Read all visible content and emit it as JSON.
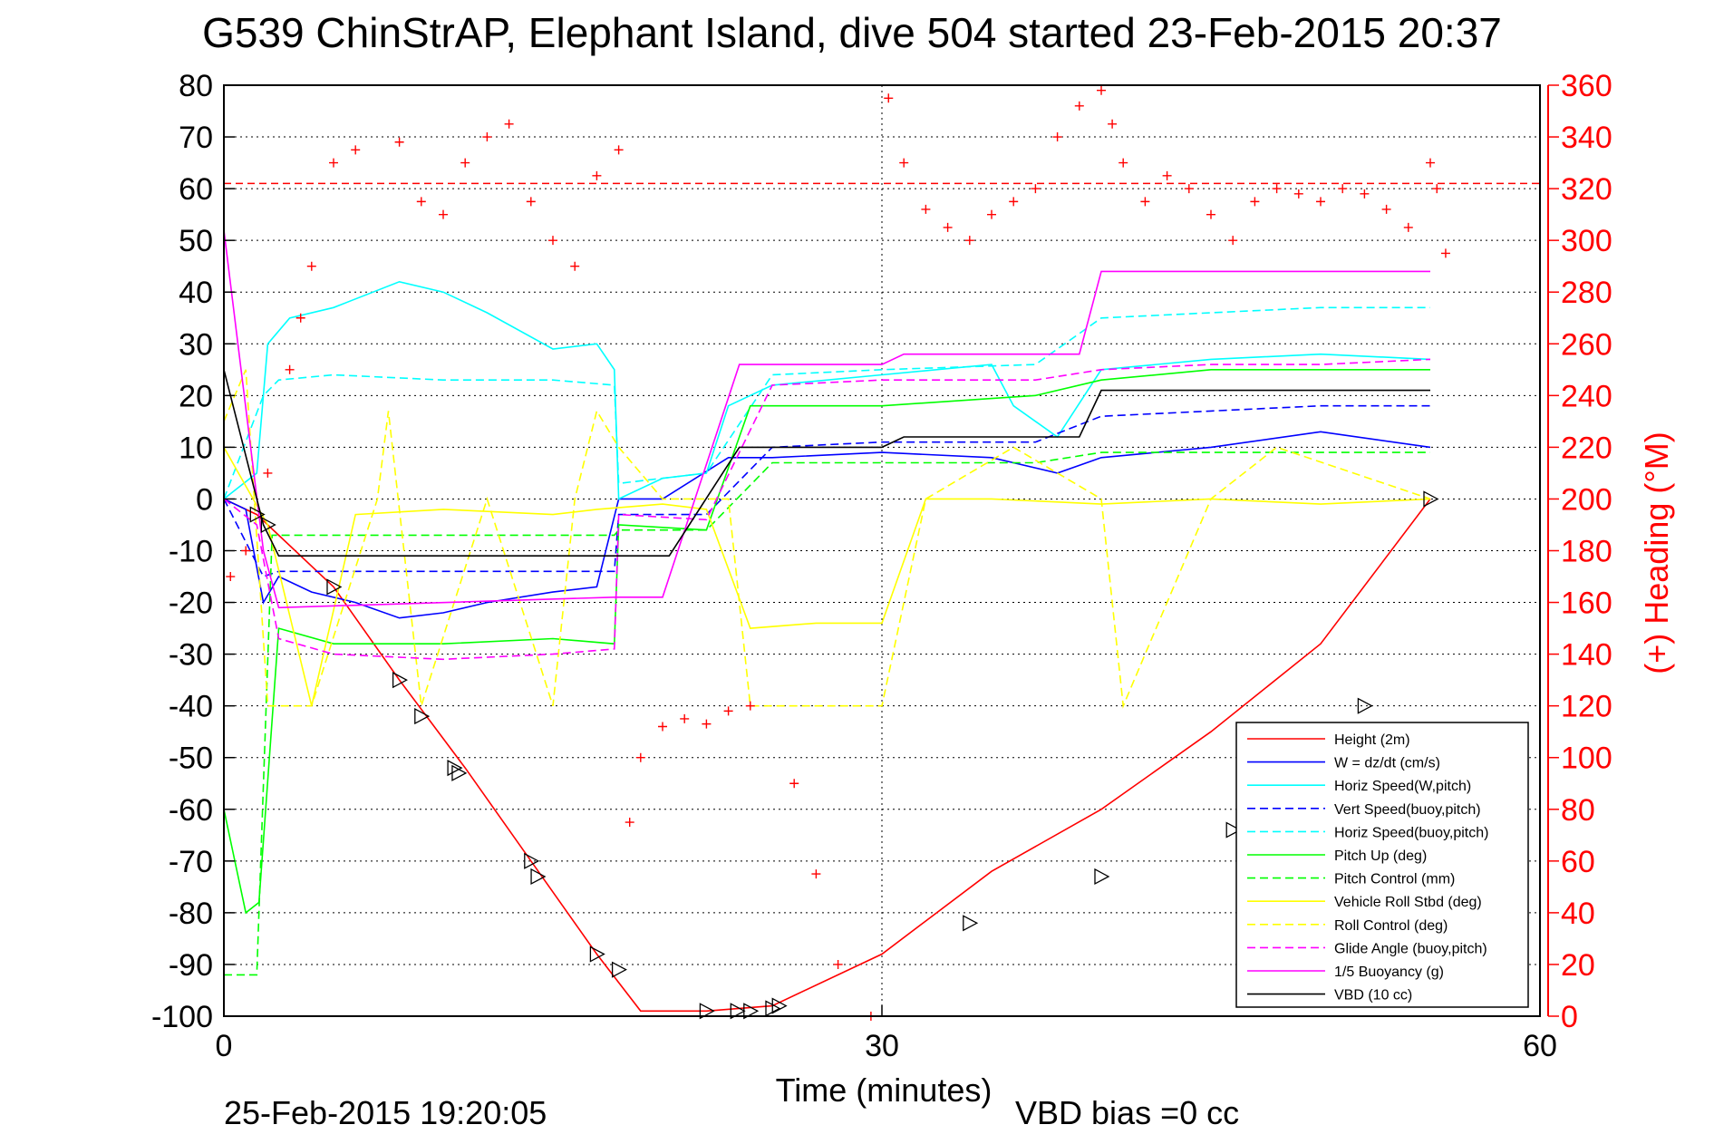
{
  "chart_data": {
    "type": "line",
    "title": "G539 ChinStrAP, Elephant Island, dive 504 started 23-Feb-2015 20:37",
    "xlabel": "Time (minutes)",
    "ylabel": "",
    "y2label": "(+) Heading (°M)",
    "xlim": [
      0,
      60
    ],
    "ylim": [
      -100,
      80
    ],
    "y2lim": [
      0,
      360
    ],
    "xticks": [
      "0",
      "30",
      "60"
    ],
    "yticks": [
      "80",
      "70",
      "60",
      "50",
      "40",
      "30",
      "20",
      "10",
      "0",
      "-10",
      "-20",
      "-30",
      "-40",
      "-50",
      "-60",
      "-70",
      "-80",
      "-90",
      "-100"
    ],
    "y2ticks": [
      "360",
      "340",
      "320",
      "300",
      "280",
      "260",
      "240",
      "220",
      "200",
      "180",
      "160",
      "140",
      "120",
      "100",
      "80",
      "60",
      "40",
      "20",
      "0"
    ],
    "grid": true,
    "legend_position": "bottom-right",
    "footer_date": "25-Feb-2015 19:20:05",
    "footer_note": "VBD bias =0 cc",
    "colors": {
      "red": "#ff0000",
      "blue": "#0000ff",
      "cyan": "#00ffff",
      "green": "#00ff00",
      "yellow": "#ffff00",
      "magenta": "#ff00ff",
      "black": "#000000"
    },
    "series": [
      {
        "name": "Height (2m)",
        "color": "#ff0000",
        "dash": "solid",
        "x": [
          0,
          1.5,
          2,
          5,
          8,
          11,
          14,
          17,
          19,
          22,
          25,
          30,
          35,
          40,
          45,
          50,
          55
        ],
        "y": [
          0,
          -3,
          -5,
          -17,
          -35,
          -52,
          -70,
          -88,
          -99,
          -99,
          -98,
          -88,
          -72,
          -60,
          -45,
          -28,
          0
        ]
      },
      {
        "name": "W = dz/dt (cm/s)",
        "color": "#0000ff",
        "dash": "solid",
        "x": [
          0,
          1,
          1.8,
          2.5,
          4,
          6,
          8,
          10,
          12,
          15,
          17,
          18,
          20,
          23,
          25,
          30,
          35,
          38,
          40,
          45,
          50,
          55
        ],
        "y": [
          0,
          -2,
          -20,
          -15,
          -18,
          -20,
          -23,
          -22,
          -20,
          -18,
          -17,
          0,
          0,
          8,
          8,
          9,
          8,
          5,
          8,
          10,
          13,
          10
        ]
      },
      {
        "name": "Horiz Speed(W,pitch)",
        "color": "#00ffff",
        "dash": "solid",
        "x": [
          0,
          1.5,
          2,
          3,
          5,
          8,
          10,
          12,
          15,
          17,
          17.8,
          18,
          20,
          22,
          23,
          25,
          30,
          35,
          36,
          38,
          40,
          45,
          50,
          55
        ],
        "y": [
          0,
          5,
          30,
          35,
          37,
          42,
          40,
          36,
          29,
          30,
          25,
          0,
          4,
          5,
          18,
          22,
          24,
          26,
          18,
          12,
          25,
          27,
          28,
          27
        ]
      },
      {
        "name": "Vert Speed(buoy,pitch)",
        "color": "#0000ff",
        "dash": "dashed",
        "x": [
          0,
          1.8,
          2.5,
          17.8,
          18,
          22,
          25,
          30,
          37,
          40,
          45,
          50,
          55
        ],
        "y": [
          0,
          -15,
          -14,
          -14,
          -3,
          -3,
          10,
          11,
          11,
          16,
          17,
          18,
          18
        ]
      },
      {
        "name": "Horiz Speed(buoy,pitch)",
        "color": "#00ffff",
        "dash": "dashed",
        "x": [
          0,
          1.8,
          2.5,
          5,
          10,
          15,
          17.8,
          18,
          22,
          25,
          30,
          37,
          40,
          45,
          50,
          55
        ],
        "y": [
          0,
          20,
          23,
          24,
          23,
          23,
          22,
          3,
          5,
          24,
          25,
          26,
          35,
          36,
          37,
          37
        ]
      },
      {
        "name": "Pitch Up (deg)",
        "color": "#00ff00",
        "dash": "solid",
        "x": [
          0,
          1,
          1.6,
          2.5,
          5,
          10,
          15,
          17.8,
          18,
          22,
          24,
          30,
          37,
          40,
          45,
          50,
          55
        ],
        "y": [
          -60,
          -80,
          -78,
          -25,
          -28,
          -28,
          -27,
          -28,
          -5,
          -6,
          18,
          18,
          20,
          23,
          25,
          25,
          25
        ]
      },
      {
        "name": "Pitch Control (mm)",
        "color": "#00ff00",
        "dash": "dashed",
        "x": [
          0,
          1.5,
          2.2,
          17.8,
          18,
          22,
          25,
          30,
          37,
          40,
          45,
          50,
          55
        ],
        "y": [
          -92,
          -92,
          -7,
          -7,
          -6,
          -6,
          7,
          7,
          7,
          9,
          9,
          9,
          9
        ]
      },
      {
        "name": "Vehicle Roll Stbd (deg)",
        "color": "#ffff00",
        "dash": "solid",
        "x": [
          0,
          2,
          4,
          6,
          10,
          15,
          17,
          20,
          22,
          24,
          27,
          30,
          32,
          35,
          40,
          45,
          50,
          55
        ],
        "y": [
          10,
          -5,
          -40,
          -3,
          -2,
          -3,
          -2,
          -1,
          -2,
          -25,
          -24,
          -24,
          0,
          0,
          -1,
          0,
          -1,
          0
        ]
      },
      {
        "name": "Roll Control (deg)",
        "color": "#ffff00",
        "dash": "dashed",
        "x": [
          0,
          1,
          2,
          4,
          7,
          7.5,
          9,
          12,
          15,
          16,
          17,
          18,
          20,
          23,
          24,
          30,
          32,
          36,
          40,
          41,
          45,
          48,
          55
        ],
        "y": [
          15,
          25,
          -40,
          -40,
          0,
          17,
          -40,
          0,
          -40,
          0,
          17,
          10,
          0,
          0,
          -40,
          -40,
          0,
          10,
          0,
          -40,
          0,
          10,
          0
        ]
      },
      {
        "name": "Glide Angle (buoy,pitch)",
        "color": "#ff00ff",
        "dash": "dashed",
        "x": [
          0,
          1.5,
          2.5,
          5,
          10,
          15,
          17.8,
          18,
          22,
          25,
          30,
          37,
          40,
          45,
          50,
          55
        ],
        "y": [
          0,
          -5,
          -27,
          -30,
          -31,
          -30,
          -29,
          -3,
          -4,
          22,
          23,
          23,
          25,
          26,
          26,
          27
        ]
      },
      {
        "name": "1/5 Buoyancy (g)",
        "color": "#ff00ff",
        "dash": "solid",
        "x": [
          0,
          1.8,
          2.5,
          17.8,
          20,
          23.5,
          30,
          31,
          39,
          40,
          50,
          55
        ],
        "y": [
          52,
          -10,
          -21,
          -19,
          -19,
          26,
          26,
          28,
          28,
          44,
          44,
          44
        ]
      },
      {
        "name": "VBD (10 cc)",
        "color": "#000000",
        "dash": "solid",
        "x": [
          0,
          1.8,
          2.5,
          17.8,
          20.3,
          23.5,
          30,
          31,
          39,
          40,
          50,
          55
        ],
        "y": [
          25,
          -5,
          -11,
          -11,
          -11,
          10,
          10,
          12,
          12,
          21,
          21,
          21
        ]
      }
    ],
    "markers_series": {
      "name": "Height (2m)",
      "marker": "triangle",
      "color": "#000000",
      "x": [
        1.5,
        2,
        5,
        8,
        9,
        10.5,
        10.7,
        14,
        14.3,
        17,
        18,
        22,
        23.4,
        24,
        25,
        25.3,
        34,
        40,
        46,
        47,
        48.5,
        52,
        55
      ],
      "y": [
        -3,
        -5,
        -17,
        -35,
        -42,
        -52,
        -53,
        -70,
        -73,
        -88,
        -91,
        -99,
        -99,
        -99,
        -98.5,
        -98,
        -82,
        -73,
        -64,
        -57,
        -54,
        -40,
        0
      ]
    },
    "heading_series": {
      "name": "(+) Heading (°M)",
      "axis": "right",
      "color": "#ff0000",
      "marker": "plus",
      "x": [
        0.3,
        1,
        2,
        3,
        3.5,
        4,
        5,
        6,
        8,
        9,
        10,
        11,
        12,
        13,
        14,
        15,
        16,
        17,
        18,
        18.5,
        19,
        20,
        21,
        22,
        23,
        24,
        26,
        27,
        28,
        29.5,
        30.3,
        31,
        32,
        33,
        34,
        35,
        36,
        37,
        38,
        39,
        40,
        40.5,
        41,
        42,
        43,
        44,
        45,
        46,
        47,
        48,
        49,
        50,
        51,
        52,
        53,
        54,
        55,
        55.3,
        55.7
      ],
      "y": [
        170,
        180,
        210,
        250,
        270,
        290,
        330,
        335,
        338,
        315,
        310,
        330,
        340,
        345,
        315,
        300,
        290,
        325,
        335,
        75,
        100,
        112,
        115,
        113,
        118,
        120,
        90,
        55,
        20,
        0,
        355,
        330,
        312,
        305,
        300,
        310,
        315,
        320,
        340,
        352,
        358,
        345,
        330,
        315,
        325,
        320,
        310,
        300,
        315,
        320,
        318,
        315,
        320,
        318,
        312,
        305,
        330,
        320,
        295
      ]
    },
    "reference_line": {
      "name": "",
      "axis": "right",
      "value": 322,
      "color": "#ff0000",
      "dash": "dashed"
    }
  }
}
